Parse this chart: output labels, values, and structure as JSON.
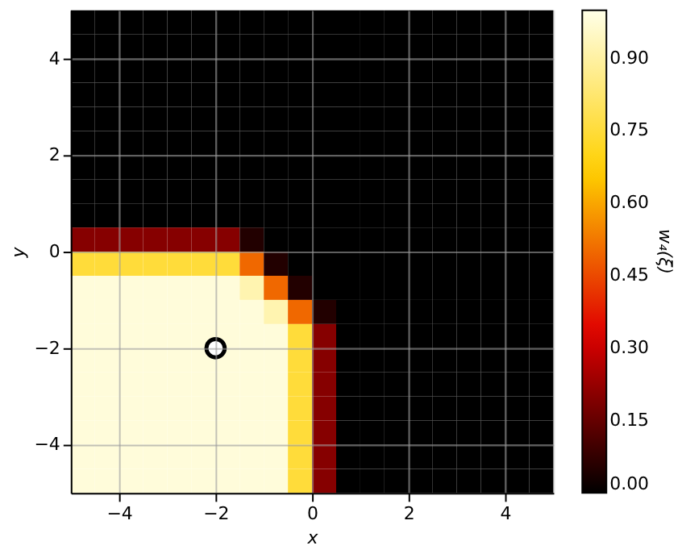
{
  "chart_data": {
    "type": "heatmap",
    "xlabel": "x",
    "ylabel": "y",
    "clabel": "w₄(ξ)",
    "x": [
      -4.75,
      -4.25,
      -3.75,
      -3.25,
      -2.75,
      -2.25,
      -1.75,
      -1.25,
      -0.75,
      -0.25,
      0.25,
      0.75,
      1.25,
      1.75,
      2.25,
      2.75,
      3.25,
      3.75,
      4.25,
      4.75
    ],
    "y": [
      4.75,
      4.25,
      3.75,
      3.25,
      2.75,
      2.25,
      1.75,
      1.25,
      0.75,
      0.25,
      -0.25,
      -0.75,
      -1.25,
      -1.75,
      -2.25,
      -2.75,
      -3.25,
      -3.75,
      -4.25,
      -4.75
    ],
    "cells": [
      [
        0,
        0,
        0,
        0,
        0,
        0,
        0,
        0,
        0,
        0,
        0,
        0,
        0,
        0,
        0,
        0,
        0,
        0,
        0,
        0
      ],
      [
        0,
        0,
        0,
        0,
        0,
        0,
        0,
        0,
        0,
        0,
        0,
        0,
        0,
        0,
        0,
        0,
        0,
        0,
        0,
        0
      ],
      [
        0,
        0,
        0,
        0,
        0,
        0,
        0,
        0,
        0,
        0,
        0,
        0,
        0,
        0,
        0,
        0,
        0,
        0,
        0,
        0
      ],
      [
        0,
        0,
        0,
        0,
        0,
        0,
        0,
        0,
        0,
        0,
        0,
        0,
        0,
        0,
        0,
        0,
        0,
        0,
        0,
        0
      ],
      [
        0,
        0,
        0,
        0,
        0,
        0,
        0,
        0,
        0,
        0,
        0,
        0,
        0,
        0,
        0,
        0,
        0,
        0,
        0,
        0
      ],
      [
        0,
        0,
        0,
        0,
        0,
        0,
        0,
        0,
        0,
        0,
        0,
        0,
        0,
        0,
        0,
        0,
        0,
        0,
        0,
        0
      ],
      [
        0,
        0,
        0,
        0,
        0,
        0,
        0,
        0,
        0,
        0,
        0,
        0,
        0,
        0,
        0,
        0,
        0,
        0,
        0,
        0
      ],
      [
        0,
        0,
        0,
        0,
        0,
        0,
        0,
        0,
        0,
        0,
        0,
        0,
        0,
        0,
        0,
        0,
        0,
        0,
        0,
        0
      ],
      [
        0,
        0,
        0,
        0,
        0,
        0,
        0,
        0,
        0,
        0,
        0,
        0,
        0,
        0,
        0,
        0,
        0,
        0,
        0,
        0
      ],
      [
        0.2,
        0.2,
        0.2,
        0.2,
        0.2,
        0.2,
        0.2,
        0.05,
        0,
        0,
        0,
        0,
        0,
        0,
        0,
        0,
        0,
        0,
        0,
        0
      ],
      [
        0.75,
        0.75,
        0.75,
        0.75,
        0.75,
        0.75,
        0.75,
        0.5,
        0.05,
        0,
        0,
        0,
        0,
        0,
        0,
        0,
        0,
        0,
        0,
        0
      ],
      [
        0.98,
        0.98,
        0.98,
        0.98,
        0.98,
        0.98,
        0.98,
        0.92,
        0.5,
        0.05,
        0,
        0,
        0,
        0,
        0,
        0,
        0,
        0,
        0,
        0
      ],
      [
        0.98,
        0.98,
        0.98,
        0.98,
        0.98,
        0.98,
        0.98,
        0.98,
        0.92,
        0.5,
        0.05,
        0,
        0,
        0,
        0,
        0,
        0,
        0,
        0,
        0
      ],
      [
        0.98,
        0.98,
        0.98,
        0.98,
        0.98,
        0.98,
        0.98,
        0.98,
        0.98,
        0.75,
        0.2,
        0,
        0,
        0,
        0,
        0,
        0,
        0,
        0,
        0
      ],
      [
        0.98,
        0.98,
        0.98,
        0.98,
        0.98,
        0.98,
        0.98,
        0.98,
        0.98,
        0.75,
        0.2,
        0,
        0,
        0,
        0,
        0,
        0,
        0,
        0,
        0
      ],
      [
        0.98,
        0.98,
        0.98,
        0.98,
        0.98,
        0.98,
        0.98,
        0.98,
        0.98,
        0.75,
        0.2,
        0,
        0,
        0,
        0,
        0,
        0,
        0,
        0,
        0
      ],
      [
        0.98,
        0.98,
        0.98,
        0.98,
        0.98,
        0.98,
        0.98,
        0.98,
        0.98,
        0.75,
        0.2,
        0,
        0,
        0,
        0,
        0,
        0,
        0,
        0,
        0
      ],
      [
        0.98,
        0.98,
        0.98,
        0.98,
        0.98,
        0.98,
        0.98,
        0.98,
        0.98,
        0.75,
        0.2,
        0,
        0,
        0,
        0,
        0,
        0,
        0,
        0,
        0
      ],
      [
        0.98,
        0.98,
        0.98,
        0.98,
        0.98,
        0.98,
        0.98,
        0.98,
        0.98,
        0.75,
        0.2,
        0,
        0,
        0,
        0,
        0,
        0,
        0,
        0,
        0
      ],
      [
        0.98,
        0.98,
        0.98,
        0.98,
        0.98,
        0.98,
        0.98,
        0.98,
        0.98,
        0.75,
        0.2,
        0,
        0,
        0,
        0,
        0,
        0,
        0,
        0,
        0
      ]
    ],
    "xlim": [
      -5,
      5
    ],
    "ylim": [
      -5,
      5
    ],
    "xticks": [
      {
        "value": -4,
        "label": "−4"
      },
      {
        "value": -2,
        "label": "−2"
      },
      0,
      2,
      4
    ],
    "yticks": [
      {
        "value": -4,
        "label": "−4"
      },
      {
        "value": -2,
        "label": "−2"
      },
      0,
      2,
      4
    ],
    "clim": [
      0,
      1
    ],
    "cticks": [
      {
        "value": 0,
        "label": "0.00"
      },
      {
        "value": 0.15,
        "label": "0.15"
      },
      {
        "value": 0.3,
        "label": "0.30"
      },
      {
        "value": 0.45,
        "label": "0.45"
      },
      {
        "value": 0.6,
        "label": "0.60"
      },
      {
        "value": 0.75,
        "label": "0.75"
      },
      {
        "value": 0.9,
        "label": "0.90"
      }
    ],
    "grid": true,
    "marker": "circle",
    "series": [
      {
        "type": "scatter",
        "x": [
          -2
        ],
        "values": [
          -2
        ],
        "color": "#ffffff"
      }
    ]
  }
}
